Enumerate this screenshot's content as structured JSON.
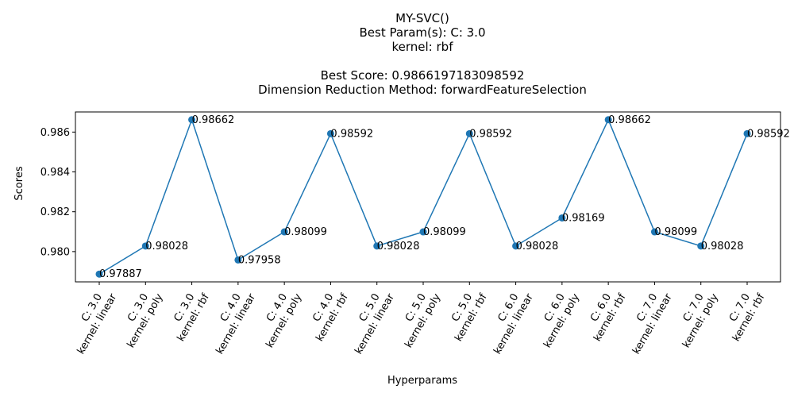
{
  "chart_data": {
    "type": "line",
    "title_lines": [
      "MY-SVC()",
      "Best Param(s): C: 3.0",
      "kernel: rbf",
      "",
      "Best Score: 0.9866197183098592",
      "Dimension Reduction Method: forwardFeatureSelection"
    ],
    "xlabel": "Hyperparams",
    "ylabel": "Scores",
    "categories": [
      [
        "C: 3.0",
        "kernel: linear"
      ],
      [
        "C: 3.0",
        "kernel: poly"
      ],
      [
        "C: 3.0",
        "kernel: rbf"
      ],
      [
        "C: 4.0",
        "kernel: linear"
      ],
      [
        "C: 4.0",
        "kernel: poly"
      ],
      [
        "C: 4.0",
        "kernel: rbf"
      ],
      [
        "C: 5.0",
        "kernel: linear"
      ],
      [
        "C: 5.0",
        "kernel: poly"
      ],
      [
        "C: 5.0",
        "kernel: rbf"
      ],
      [
        "C: 6.0",
        "kernel: linear"
      ],
      [
        "C: 6.0",
        "kernel: poly"
      ],
      [
        "C: 6.0",
        "kernel: rbf"
      ],
      [
        "C: 7.0",
        "kernel: linear"
      ],
      [
        "C: 7.0",
        "kernel: poly"
      ],
      [
        "C: 7.0",
        "kernel: rbf"
      ]
    ],
    "values": [
      0.97887,
      0.98028,
      0.98662,
      0.97958,
      0.98099,
      0.98592,
      0.98028,
      0.98099,
      0.98592,
      0.98028,
      0.98169,
      0.98662,
      0.98099,
      0.98028,
      0.98592
    ],
    "data_labels": [
      "0.97887",
      "0.98028",
      "0.98662",
      "0.97958",
      "0.98099",
      "0.98592",
      "0.98028",
      "0.98099",
      "0.98592",
      "0.98028",
      "0.98169",
      "0.98662",
      "0.98099",
      "0.98028",
      "0.98592"
    ],
    "y_ticks": [
      0.98,
      0.982,
      0.984,
      0.986
    ],
    "y_tick_labels": [
      "0.980",
      "0.982",
      "0.984",
      "0.986"
    ],
    "ylim": [
      0.97848,
      0.98701
    ],
    "grid": false,
    "legend": "none",
    "line_color": "#1f77b4"
  }
}
